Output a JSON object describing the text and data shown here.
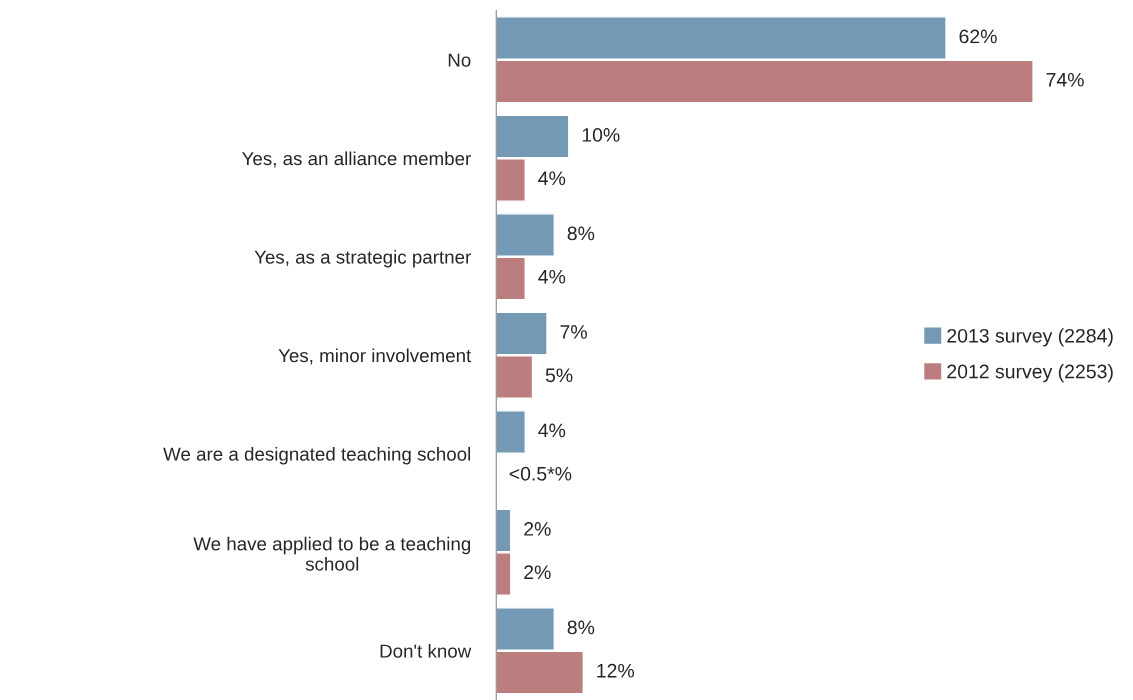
{
  "chart_data": {
    "type": "bar",
    "orientation": "horizontal",
    "categories": [
      "No",
      "Yes, as an alliance member",
      "Yes, as a strategic partner",
      "Yes, minor involvement",
      "We are a designated teaching school",
      "We have applied to be a teaching\nschool",
      "Don't know"
    ],
    "series": [
      {
        "name": "2013 survey (2284)",
        "color": "#7399b4",
        "values": [
          62,
          10,
          8,
          7,
          4,
          2,
          8
        ],
        "value_labels": [
          "62%",
          "10%",
          "8%",
          "7%",
          "4%",
          "2%",
          "8%"
        ]
      },
      {
        "name": "2012 survey (2253)",
        "color": "#bc7d7e",
        "values": [
          74,
          4,
          4,
          5,
          null,
          2,
          12
        ],
        "value_labels": [
          "74%",
          "4%",
          "4%",
          "5%",
          "<0.5*%",
          "2%",
          "12%"
        ]
      }
    ],
    "legend": "right",
    "grid": false
  }
}
